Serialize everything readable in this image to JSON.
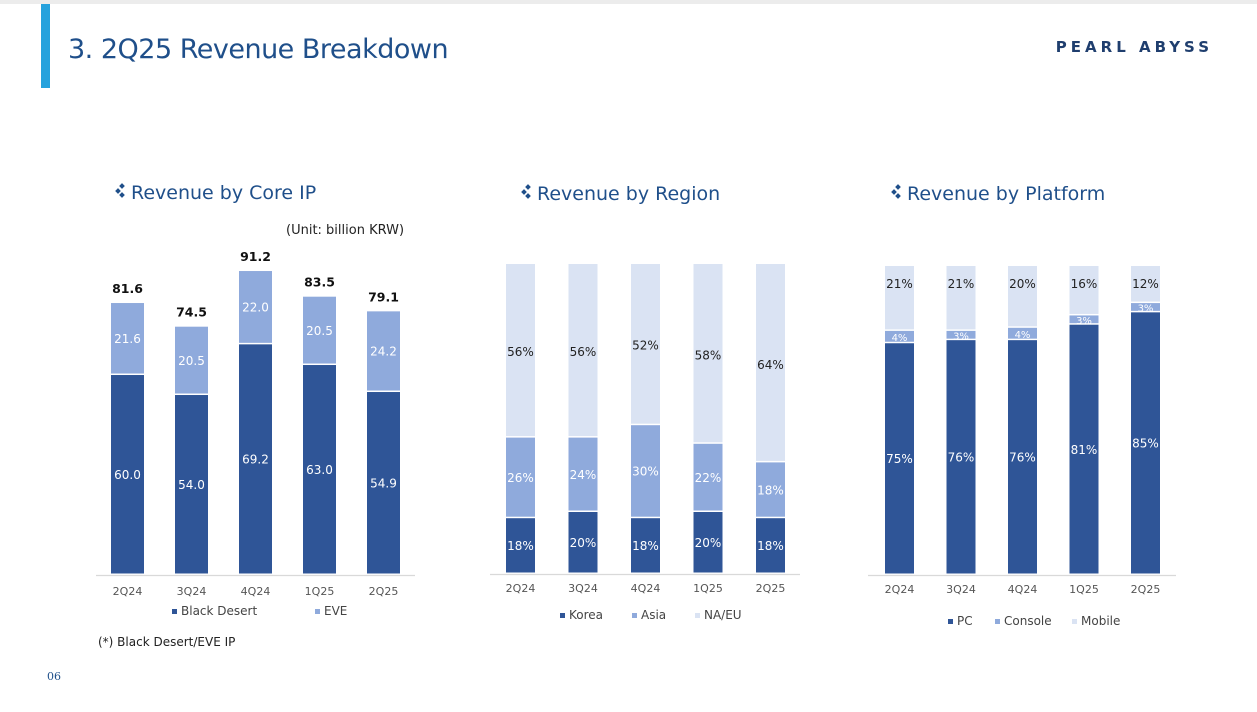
{
  "header": {
    "title": "3. 2Q25 Revenue Breakdown",
    "brand": "PEARL ABYSS"
  },
  "colors": {
    "dark": "#2f5597",
    "mid": "#8faadc",
    "light": "#dae3f3",
    "accent": "#26a2dd",
    "title": "#1f4f8a"
  },
  "unit_note": "(Unit: billion KRW)",
  "footnote": "(*) Black Desert/EVE IP",
  "page_number": "06",
  "chart_data": [
    {
      "type": "bar",
      "stacked": true,
      "title": "Revenue by Core IP",
      "categories": [
        "2Q24",
        "3Q24",
        "4Q24",
        "1Q25",
        "2Q25"
      ],
      "series": [
        {
          "name": "Black Desert",
          "values": [
            60.0,
            54.0,
            69.2,
            63.0,
            54.9
          ],
          "labels": [
            "60.0",
            "54.0",
            "69.2",
            "63.0",
            "54.9"
          ]
        },
        {
          "name": "EVE",
          "values": [
            21.6,
            20.5,
            22.0,
            20.5,
            24.2
          ],
          "labels": [
            "21.6",
            "20.5",
            "22.0",
            "20.5",
            "24.2"
          ]
        }
      ],
      "totals": [
        "81.6",
        "74.5",
        "91.2",
        "83.5",
        "79.1"
      ],
      "legend": "bottom"
    },
    {
      "type": "bar",
      "stacked": true,
      "title": "Revenue by Region",
      "categories": [
        "2Q24",
        "3Q24",
        "4Q24",
        "1Q25",
        "2Q25"
      ],
      "series": [
        {
          "name": "Korea",
          "values": [
            18,
            20,
            18,
            20,
            18
          ],
          "labels": [
            "18%",
            "20%",
            "18%",
            "20%",
            "18%"
          ]
        },
        {
          "name": "Asia",
          "values": [
            26,
            24,
            30,
            22,
            18
          ],
          "labels": [
            "26%",
            "24%",
            "30%",
            "22%",
            "18%"
          ]
        },
        {
          "name": "NA/EU",
          "values": [
            56,
            56,
            52,
            58,
            64
          ],
          "labels": [
            "56%",
            "56%",
            "52%",
            "58%",
            "64%"
          ]
        }
      ],
      "legend": "bottom"
    },
    {
      "type": "bar",
      "stacked": true,
      "title": "Revenue by Platform",
      "categories": [
        "2Q24",
        "3Q24",
        "4Q24",
        "1Q25",
        "2Q25"
      ],
      "series": [
        {
          "name": "PC",
          "values": [
            75,
            76,
            76,
            81,
            85
          ],
          "labels": [
            "75%",
            "76%",
            "76%",
            "81%",
            "85%"
          ]
        },
        {
          "name": "Console",
          "values": [
            4,
            3,
            4,
            3,
            3
          ],
          "labels": [
            "4%",
            "3%",
            "4%",
            "3%",
            "3%"
          ]
        },
        {
          "name": "Mobile",
          "values": [
            21,
            21,
            20,
            16,
            12
          ],
          "labels": [
            "21%",
            "21%",
            "20%",
            "16%",
            "12%"
          ]
        }
      ],
      "legend": "bottom"
    }
  ]
}
